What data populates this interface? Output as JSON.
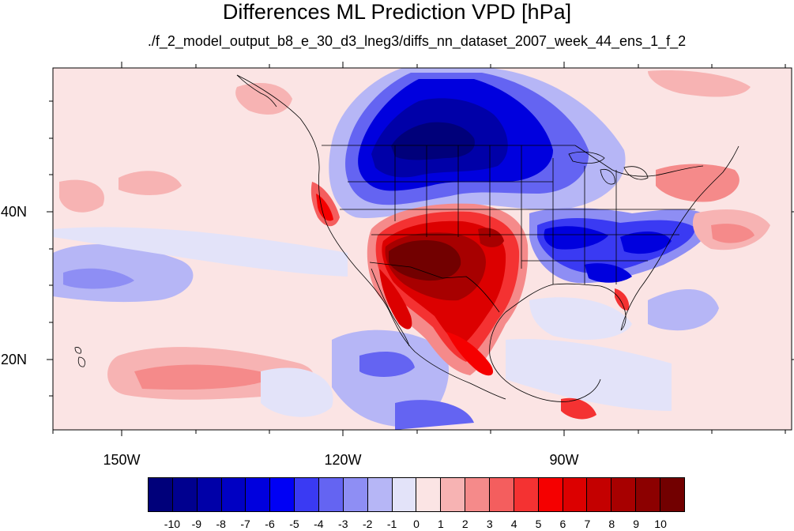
{
  "figure": {
    "title": "Differences ML Prediction VPD [hPa]",
    "subtitle": "./f_2_model_output_b8_e_30_d3_lneg3/diffs_nn_dataset_2007_week_44_ens_1_f_2"
  },
  "map": {
    "projection": "cylindrical equidistant",
    "lon_range": [
      -160,
      -62
    ],
    "lat_range": [
      11,
      60
    ],
    "lon_tick_labels": [
      "150W",
      "120W",
      "90W"
    ],
    "lat_tick_labels": [
      "40N",
      "20N"
    ],
    "background_color": "#fbe4e4",
    "coastline_color": "#000000",
    "features": [
      {
        "name": "northern-plains-drying",
        "sign": "negative",
        "max_abs": 10
      },
      {
        "name": "southwest-warming",
        "sign": "positive",
        "max_abs": 10
      },
      {
        "name": "southeast-negative",
        "sign": "negative",
        "max_abs": 6
      },
      {
        "name": "california-coast-positive",
        "sign": "positive",
        "max_abs": 6
      },
      {
        "name": "northeast-positive",
        "sign": "positive",
        "max_abs": 4
      },
      {
        "name": "pacific-positive-band",
        "sign": "positive",
        "max_abs": 3
      },
      {
        "name": "eastern-pacific-negative",
        "sign": "negative",
        "max_abs": 4
      }
    ]
  },
  "colorbar": {
    "labels": [
      "-10",
      "-9",
      "-8",
      "-7",
      "-6",
      "-5",
      "-4",
      "-3",
      "-2",
      "-1",
      "0",
      "1",
      "2",
      "3",
      "4",
      "5",
      "6",
      "7",
      "8",
      "9",
      "10"
    ],
    "colors": [
      "#00007a",
      "#00008f",
      "#0000a8",
      "#0000c3",
      "#0000de",
      "#0000f5",
      "#3a3af3",
      "#6464f2",
      "#8e8ef4",
      "#b6b6f6",
      "#e3e3f9",
      "#fbe4e4",
      "#f7b3b3",
      "#f58a8a",
      "#f45e5e",
      "#f43232",
      "#f50000",
      "#dc0000",
      "#c40000",
      "#a70000",
      "#8c0000",
      "#720000"
    ]
  }
}
